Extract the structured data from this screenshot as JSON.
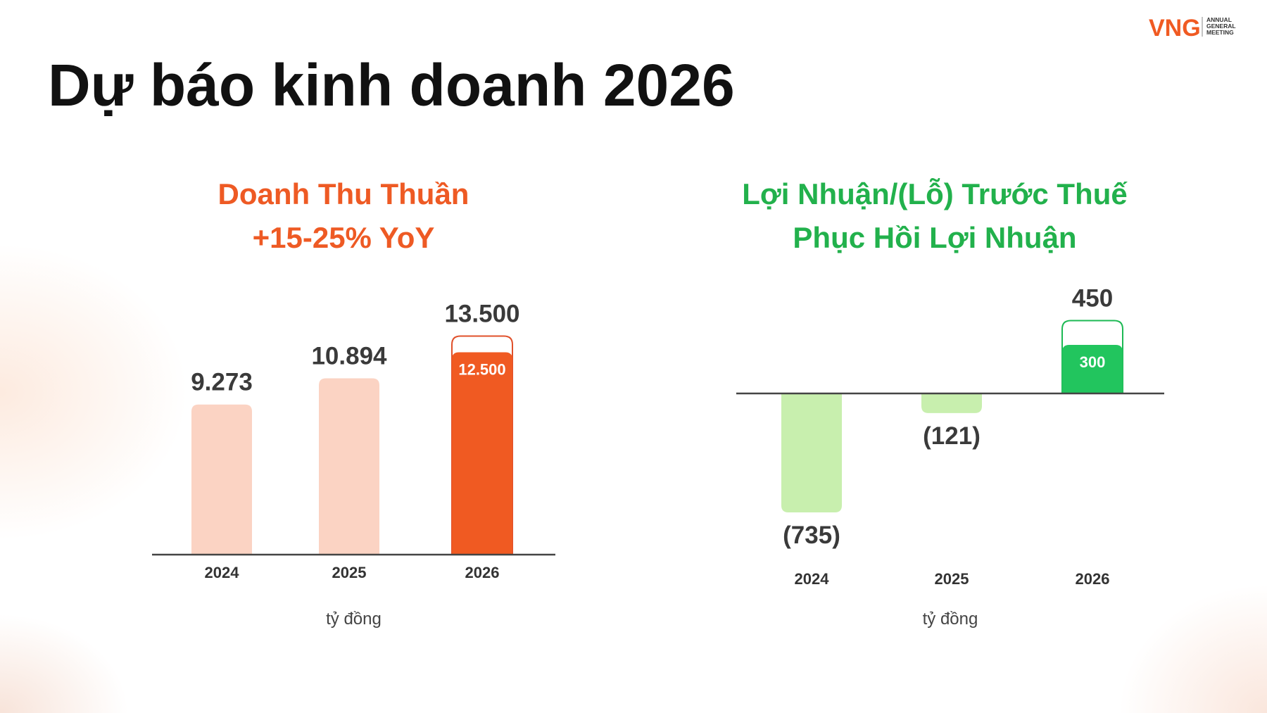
{
  "header": {
    "title": "Dự báo kinh doanh 2026",
    "logo": "VNG",
    "logo_text": [
      "ANNUAL",
      "GENERAL",
      "MEETING"
    ]
  },
  "chart_data": [
    {
      "type": "bar",
      "title": "Doanh Thu Thuần",
      "subtitle": "+15-25% YoY",
      "title_color": "#ee5a24",
      "categories": [
        "2024",
        "2025",
        "2026"
      ],
      "values": [
        9273,
        10894,
        12500
      ],
      "value_labels": [
        "9.273",
        "10.894",
        "12.500"
      ],
      "upper_values": [
        null,
        null,
        13500
      ],
      "upper_value_labels": [
        null,
        null,
        "13.500"
      ],
      "colors": [
        "#fbd3c3",
        "#fbd3c3",
        "#f05a22"
      ],
      "outline_color": "#e0502a",
      "ylim": [
        0,
        14000
      ],
      "unit": "tỷ đồng"
    },
    {
      "type": "bar",
      "title": "Lợi Nhuận/(Lỗ) Trước Thuế",
      "subtitle": "Phục Hồi Lợi Nhuận",
      "title_color": "#22b14c",
      "categories": [
        "2024",
        "2025",
        "2026"
      ],
      "values": [
        -735,
        -121,
        300
      ],
      "value_labels": [
        "(735)",
        "(121)",
        "300"
      ],
      "upper_values": [
        null,
        null,
        450
      ],
      "upper_value_labels": [
        null,
        null,
        "450"
      ],
      "colors": [
        "#c8efae",
        "#c8efae",
        "#22c55e"
      ],
      "outline_color": "#1db954",
      "ylim": [
        -800,
        500
      ],
      "unit": "tỷ đồng"
    }
  ]
}
